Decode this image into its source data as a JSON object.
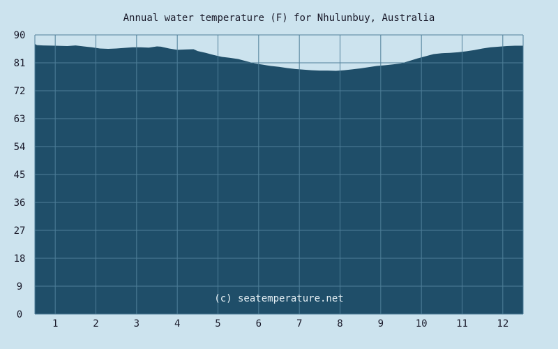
{
  "chart_data": {
    "type": "area",
    "title": "Annual water temperature (F) for Nhulunbuy, Australia",
    "xlabel": "",
    "ylabel": "",
    "ylim": [
      0,
      90
    ],
    "yticks": [
      "0",
      "9",
      "18",
      "27",
      "36",
      "45",
      "54",
      "63",
      "72",
      "81",
      "90"
    ],
    "xlim": [
      0.5,
      12.5
    ],
    "xticks": [
      "1",
      "2",
      "3",
      "4",
      "5",
      "6",
      "7",
      "8",
      "9",
      "10",
      "11",
      "12"
    ],
    "grid": true,
    "watermark": "(c) seatemperature.net",
    "colors": {
      "background": "#cce3ee",
      "fill": "#1f4e69",
      "grid": "#4f7f99",
      "text": "#1a1a2a",
      "watermark": "#e6f0f5"
    },
    "series": [
      {
        "x": [
          0.5,
          0.55,
          0.7,
          1.0,
          1.3,
          1.5,
          1.7,
          1.9,
          2.1,
          2.3,
          2.5,
          2.7,
          2.9,
          3.1,
          3.3,
          3.5,
          3.6,
          3.8,
          4.0,
          4.2,
          4.4,
          4.5,
          4.7,
          4.9,
          5.1,
          5.3,
          5.5,
          5.7,
          5.9,
          6.1,
          6.3,
          6.5,
          6.7,
          6.9,
          7.1,
          7.3,
          7.5,
          7.7,
          7.9,
          8.1,
          8.3,
          8.5,
          8.7,
          8.9,
          9.1,
          9.3,
          9.5,
          9.7,
          9.9,
          10.1,
          10.3,
          10.5,
          10.7,
          10.9,
          11.1,
          11.3,
          11.5,
          11.7,
          11.9,
          12.1,
          12.3,
          12.5
        ],
        "y": [
          87.1,
          86.7,
          86.6,
          86.5,
          86.4,
          86.6,
          86.3,
          86.0,
          85.6,
          85.5,
          85.6,
          85.8,
          86.0,
          86.0,
          85.9,
          86.3,
          86.2,
          85.6,
          85.2,
          85.3,
          85.4,
          84.8,
          84.2,
          83.5,
          82.9,
          82.6,
          82.2,
          81.5,
          80.8,
          80.4,
          80.0,
          79.7,
          79.3,
          79.0,
          78.8,
          78.6,
          78.5,
          78.5,
          78.4,
          78.6,
          78.9,
          79.2,
          79.6,
          80.0,
          80.2,
          80.5,
          80.8,
          81.6,
          82.4,
          83.1,
          83.8,
          84.1,
          84.2,
          84.4,
          84.7,
          85.1,
          85.6,
          86.0,
          86.2,
          86.4,
          86.5,
          86.5
        ]
      }
    ]
  }
}
